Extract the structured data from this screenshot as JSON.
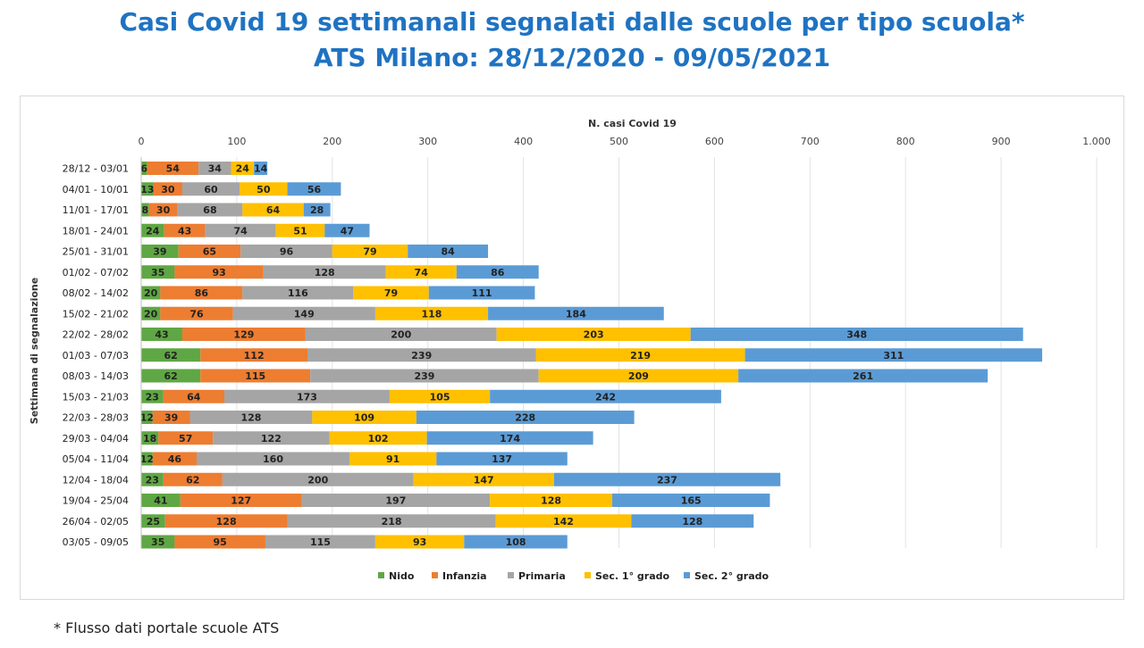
{
  "chart_data": {
    "type": "bar",
    "orientation": "horizontal",
    "stacked": true,
    "title": "Casi Covid 19 settimanali segnalati dalle scuole per tipo scuola*",
    "subtitle": "ATS Milano: 28/12/2020 - 09/05/2021",
    "xlabel": "N. casi Covid 19",
    "ylabel": "Settimana di segnalazione",
    "xlim": [
      0,
      1000
    ],
    "xticks": [
      0,
      100,
      200,
      300,
      400,
      500,
      600,
      700,
      800,
      900,
      1000
    ],
    "xtick_labels": [
      "0",
      "100",
      "200",
      "300",
      "400",
      "500",
      "600",
      "700",
      "800",
      "900",
      "1.000"
    ],
    "x_axis_position": "top",
    "grid": true,
    "legend_position": "bottom",
    "categories": [
      "28/12 - 03/01",
      "04/01 - 10/01",
      "11/01 - 17/01",
      "18/01 - 24/01",
      "25/01 - 31/01",
      "01/02 - 07/02",
      "08/02 - 14/02",
      "15/02 - 21/02",
      "22/02 - 28/02",
      "01/03 - 07/03",
      "08/03 - 14/03",
      "15/03 - 21/03",
      "22/03 - 28/03",
      "29/03 - 04/04",
      "05/04 - 11/04",
      "12/04 - 18/04",
      "19/04 - 25/04",
      "26/04 - 02/05",
      "03/05 - 09/05"
    ],
    "series": [
      {
        "name": "Nido",
        "color": "#5fa744",
        "values": [
          6,
          13,
          8,
          24,
          39,
          35,
          20,
          20,
          43,
          62,
          62,
          23,
          12,
          18,
          12,
          23,
          41,
          25,
          35
        ]
      },
      {
        "name": "Infanzia",
        "color": "#ed7d31",
        "values": [
          54,
          30,
          30,
          43,
          65,
          93,
          86,
          76,
          129,
          112,
          115,
          64,
          39,
          57,
          46,
          62,
          127,
          128,
          95
        ]
      },
      {
        "name": "Primaria",
        "color": "#a5a5a5",
        "values": [
          34,
          60,
          68,
          74,
          96,
          128,
          116,
          149,
          200,
          239,
          239,
          173,
          128,
          122,
          160,
          200,
          197,
          218,
          115
        ]
      },
      {
        "name": "Sec. 1° grado",
        "color": "#ffc000",
        "values": [
          24,
          50,
          64,
          51,
          79,
          74,
          79,
          118,
          203,
          219,
          209,
          105,
          109,
          102,
          91,
          147,
          128,
          142,
          93
        ]
      },
      {
        "name": "Sec. 2° grado",
        "color": "#5b9bd5",
        "values": [
          14,
          56,
          28,
          47,
          84,
          86,
          111,
          184,
          348,
          311,
          261,
          242,
          228,
          174,
          137,
          237,
          165,
          128,
          108
        ]
      }
    ]
  },
  "footnote": "* Flusso dati portale scuole ATS"
}
